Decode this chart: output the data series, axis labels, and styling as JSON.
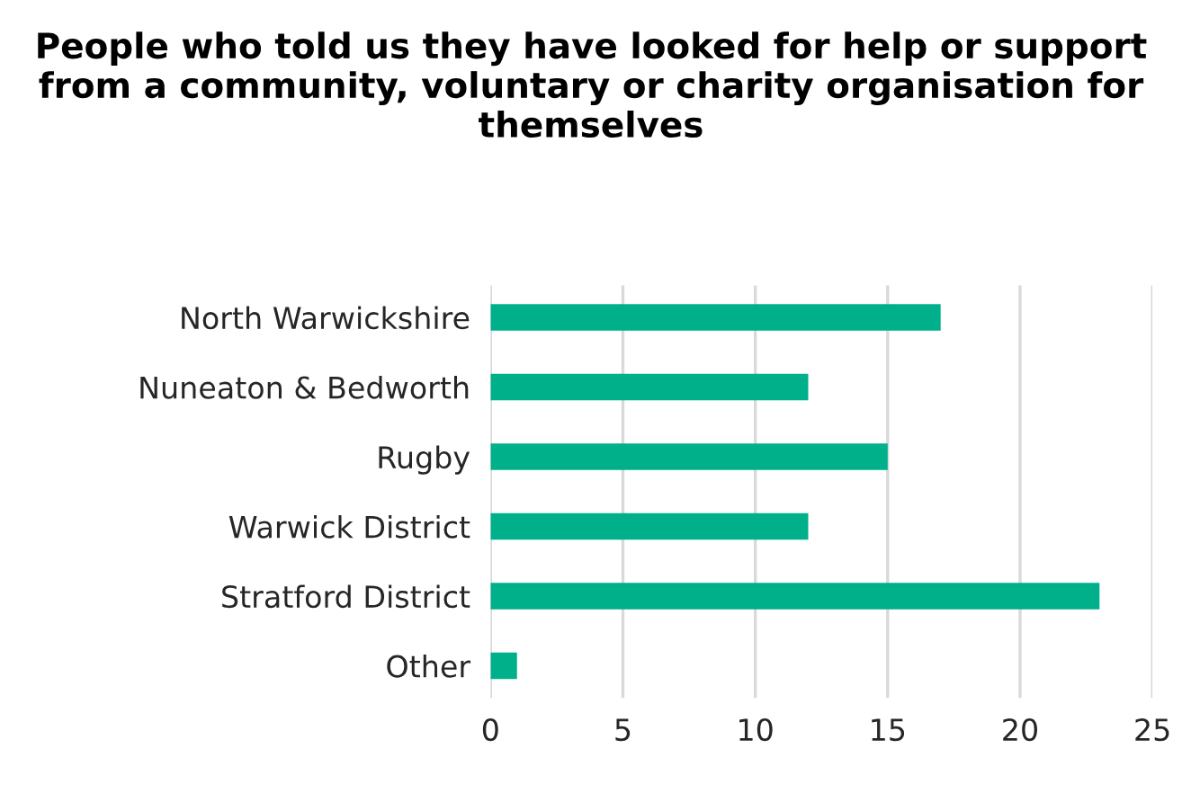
{
  "chart_data": {
    "type": "bar",
    "orientation": "horizontal",
    "title": "People who told us they have looked for help or support from a community, voluntary or charity organisation for themselves",
    "categories": [
      "North Warwickshire",
      "Nuneaton & Bedworth",
      "Rugby",
      "Warwick District",
      "Stratford District",
      "Other"
    ],
    "values": [
      17,
      12,
      15,
      12,
      23,
      1
    ],
    "color": "#00b08b",
    "xlim": [
      0,
      25
    ],
    "xticks": [
      0,
      5,
      10,
      15,
      20,
      25
    ],
    "grid": "x"
  }
}
